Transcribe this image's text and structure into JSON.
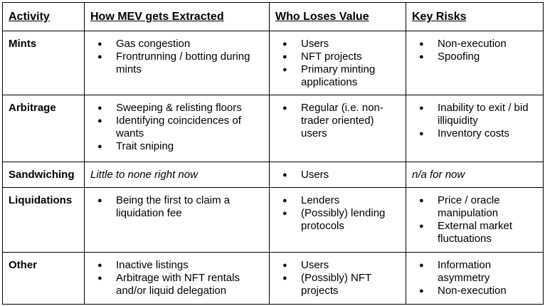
{
  "table": {
    "headers": [
      "Activity",
      "How MEV gets Extracted",
      "Who Loses Value",
      "Key Risks"
    ],
    "rows": [
      {
        "label": "Mints",
        "cells": [
          {
            "items": [
              "Gas congestion",
              "Frontrunning / botting during mints"
            ]
          },
          {
            "items": [
              "Users",
              "NFT projects",
              "Primary minting applications"
            ]
          },
          {
            "items": [
              "Non-execution",
              "Spoofing"
            ]
          }
        ]
      },
      {
        "label": "Arbitrage",
        "cells": [
          {
            "items": [
              "Sweeping & relisting floors",
              "Identifying coincidences of wants",
              "Trait sniping"
            ]
          },
          {
            "items": [
              "Regular (i.e. non-trader oriented) users"
            ]
          },
          {
            "items": [
              "Inability to exit / bid illiquidity",
              "Inventory costs"
            ]
          }
        ]
      },
      {
        "label": "Sandwiching",
        "cells": [
          {
            "text": "Little to none right now"
          },
          {
            "items": [
              "Users"
            ]
          },
          {
            "text": "n/a for now"
          }
        ]
      },
      {
        "label": "Liquidations",
        "cells": [
          {
            "items": [
              "Being the first to claim a liquidation fee"
            ]
          },
          {
            "items": [
              "Lenders",
              "(Possibly) lending protocols"
            ]
          },
          {
            "items": [
              "Price / oracle manipulation",
              "External market fluctuations"
            ]
          }
        ]
      },
      {
        "label": "Other",
        "cells": [
          {
            "items": [
              "Inactive listings",
              "Arbitrage with NFT rentals and/or liquid delegation"
            ]
          },
          {
            "items": [
              "Users",
              "(Possibly) NFT projects"
            ]
          },
          {
            "items": [
              "Information asymmetry",
              "Non-execution"
            ]
          }
        ]
      }
    ]
  }
}
